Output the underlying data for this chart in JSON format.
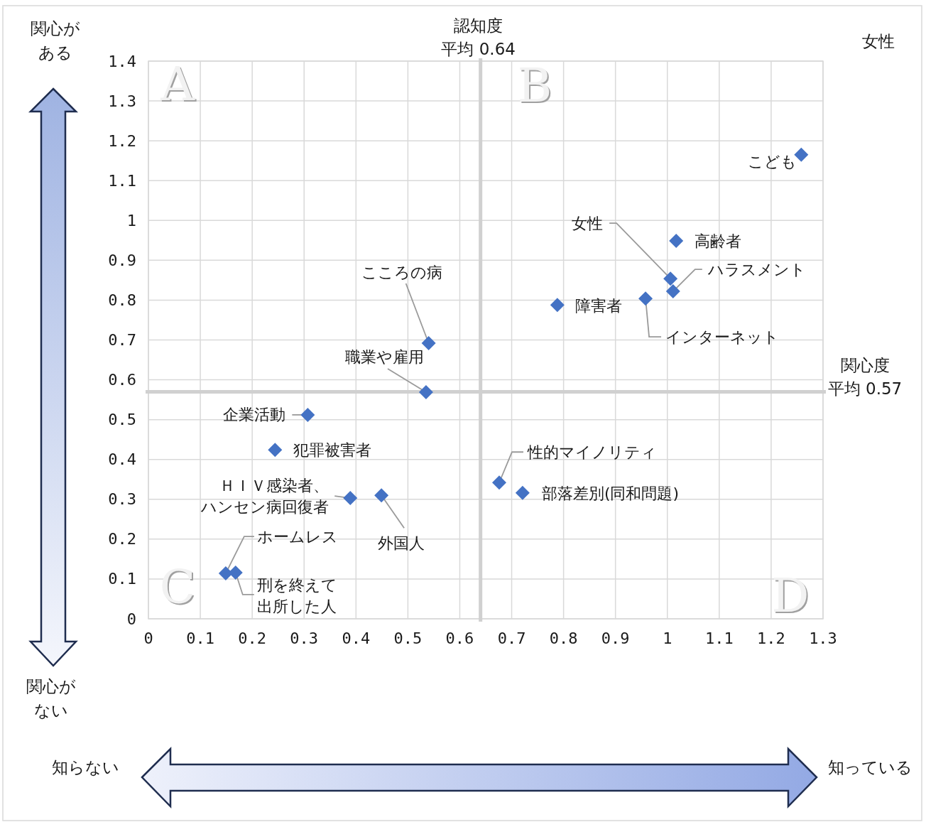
{
  "chart_data": {
    "type": "scatter",
    "title": "女性",
    "x": [
      1.258,
      1.017,
      1.006,
      1.011,
      0.958,
      0.788,
      0.54,
      0.535,
      0.307,
      0.244,
      0.389,
      0.449,
      0.676,
      0.721,
      0.149,
      0.168
    ],
    "values": [
      1.165,
      0.949,
      0.854,
      0.822,
      0.804,
      0.788,
      0.692,
      0.569,
      0.512,
      0.424,
      0.303,
      0.31,
      0.342,
      0.316,
      0.114,
      0.116
    ],
    "color": "#4472c4",
    "marker": "diamond",
    "grid": true,
    "xlim": [
      0,
      1.3
    ],
    "ylim": [
      0,
      1.4
    ],
    "xticks": [
      0,
      0.1,
      0.2,
      0.3,
      0.4,
      0.5,
      0.6,
      0.7,
      0.8,
      0.9,
      1,
      1.1,
      1.2,
      1.3
    ],
    "yticks": [
      0,
      0.1,
      0.2,
      0.3,
      0.4,
      0.5,
      0.6,
      0.7,
      0.8,
      0.9,
      1,
      1.1,
      1.2,
      1.3,
      1.4
    ],
    "ref_lines": [
      {
        "axis": "x",
        "value": 0.64,
        "label": "認知度平均 0.64",
        "color": "#d0d0d0"
      },
      {
        "axis": "y",
        "value": 0.57,
        "label": "関心度平均 0.57",
        "color": "#d0d0d0"
      }
    ],
    "annotations": [
      {
        "text": "こども",
        "x": 1.258,
        "y": 1.165
      },
      {
        "text": "高齢者",
        "x": 1.017,
        "y": 0.949
      },
      {
        "text": "女性",
        "x": 1.006,
        "y": 0.854
      },
      {
        "text": "ハラスメント",
        "x": 1.011,
        "y": 0.822
      },
      {
        "text": "インターネット",
        "x": 0.958,
        "y": 0.804
      },
      {
        "text": "障害者",
        "x": 0.788,
        "y": 0.788
      },
      {
        "text": "こころの病",
        "x": 0.54,
        "y": 0.692
      },
      {
        "text": "職業や雇用",
        "x": 0.535,
        "y": 0.569
      },
      {
        "text": "企業活動",
        "x": 0.307,
        "y": 0.512
      },
      {
        "text": "犯罪被害者",
        "x": 0.244,
        "y": 0.424
      },
      {
        "text": "ＨＩＶ感染者、ハンセン病回復者",
        "x": 0.389,
        "y": 0.303
      },
      {
        "text": "外国人",
        "x": 0.449,
        "y": 0.31
      },
      {
        "text": "性的マイノリティ",
        "x": 0.676,
        "y": 0.342
      },
      {
        "text": "部落差別(同和問題)",
        "x": 0.721,
        "y": 0.316
      },
      {
        "text": "ホームレス",
        "x": 0.149,
        "y": 0.114
      },
      {
        "text": "刑を終えて出所した人",
        "x": 0.168,
        "y": 0.116
      },
      "A",
      "B",
      "C",
      "D",
      "関心がある",
      "関心がない",
      "知らない",
      "知っている"
    ]
  }
}
